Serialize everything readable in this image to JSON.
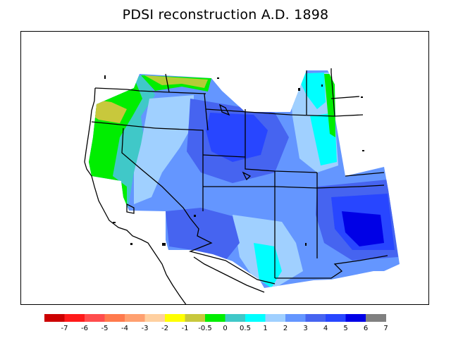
{
  "title": "PDSI reconstruction A.D. 1898",
  "legend": {
    "colors": [
      "#cc0000",
      "#ff1a1a",
      "#ff4d4d",
      "#ff7a4d",
      "#ffa070",
      "#ffd0a0",
      "#ffff00",
      "#c8c83c",
      "#00ee00",
      "#40c8c8",
      "#00ffff",
      "#a0d0ff",
      "#6496ff",
      "#4664f0",
      "#2846ff",
      "#0000e6",
      "#808080"
    ],
    "labels": [
      "-7",
      "-6",
      "-5",
      "-4",
      "-3",
      "-2",
      "-1",
      "-0.5",
      "0",
      "0.5",
      "1",
      "2",
      "3",
      "4",
      "5",
      "6",
      "7"
    ]
  },
  "map": {
    "region": "Western United States",
    "year": "1898"
  }
}
